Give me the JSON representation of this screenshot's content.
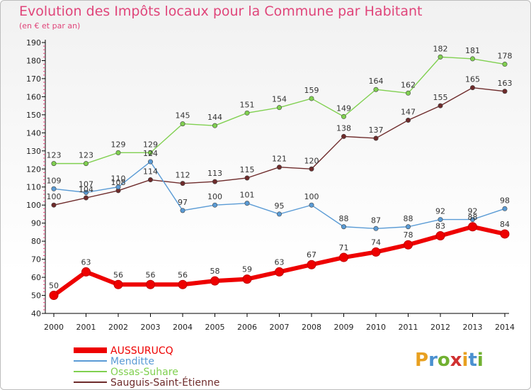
{
  "chart_data": {
    "type": "line",
    "title": "Evolution des Impôts locaux pour la Commune par Habitant",
    "subtitle": "(en € et par an)",
    "xlabel": "",
    "ylabel": "",
    "categories": [
      "2000",
      "2001",
      "2002",
      "2003",
      "2004",
      "2005",
      "2006",
      "2007",
      "2008",
      "2009",
      "2010",
      "2011",
      "2012",
      "2013",
      "2014"
    ],
    "ylim": [
      40,
      190
    ],
    "yticks": [
      40,
      50,
      60,
      70,
      80,
      90,
      100,
      110,
      120,
      130,
      140,
      150,
      160,
      170,
      180,
      190
    ],
    "grid": false,
    "legend_position": "bottom-left",
    "series": [
      {
        "name": "Ossas-Suhare",
        "color": "#80d050",
        "values": [
          123,
          123,
          129,
          129,
          145,
          144,
          151,
          154,
          159,
          149,
          164,
          162,
          182,
          181,
          178
        ]
      },
      {
        "name": "Sauguis-Saint-Étienne",
        "color": "#6e2b2b",
        "values": [
          100,
          104,
          108,
          114,
          112,
          113,
          115,
          121,
          120,
          138,
          137,
          147,
          155,
          165,
          163
        ]
      },
      {
        "name": "Menditte",
        "color": "#5a9bd5",
        "values": [
          109,
          107,
          110,
          124,
          97,
          100,
          101,
          95,
          100,
          88,
          87,
          88,
          92,
          92,
          98
        ]
      },
      {
        "name": "AUSSURUCQ",
        "color": "#ee0000",
        "values": [
          50,
          63,
          56,
          56,
          56,
          58,
          59,
          63,
          67,
          71,
          74,
          78,
          83,
          88,
          84
        ]
      }
    ],
    "legend": [
      "AUSSURUCQ",
      "Menditte",
      "Ossas-Suhare",
      "Sauguis-Saint-Étienne"
    ]
  },
  "brand": {
    "logo_text": "Proxiti",
    "letters": [
      "P",
      "r",
      "o",
      "x",
      "i",
      "t",
      "i"
    ]
  }
}
